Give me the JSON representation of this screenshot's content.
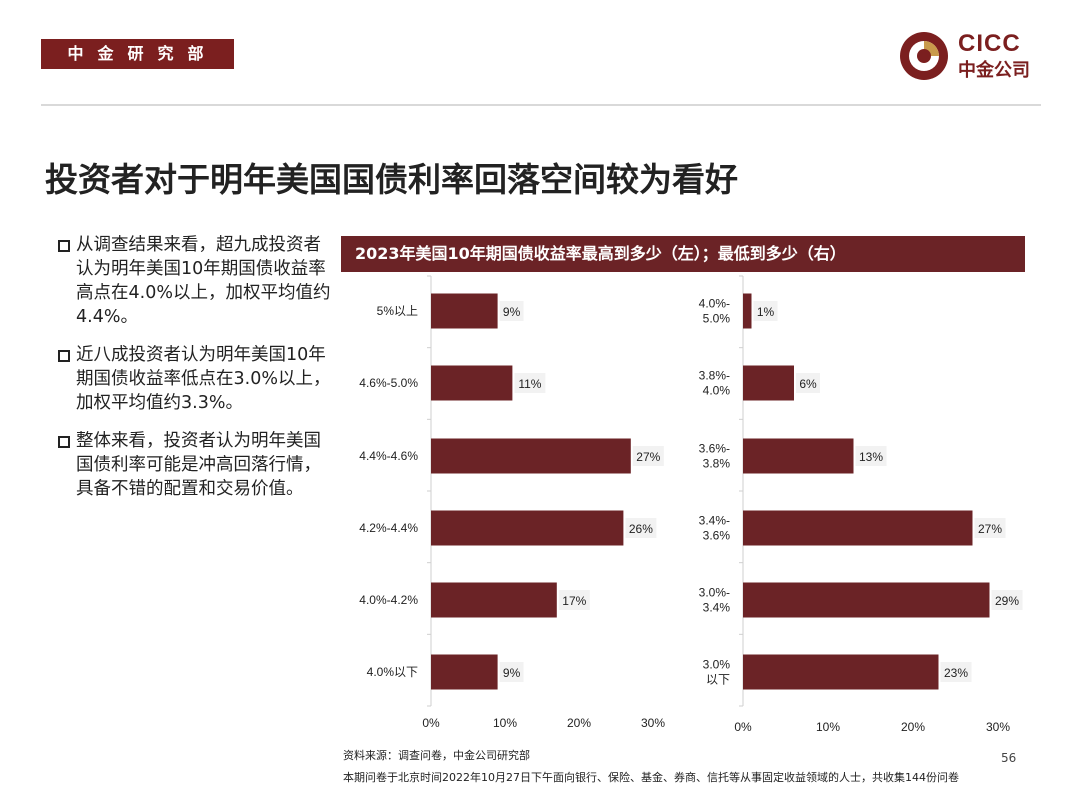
{
  "header": {
    "department": "中金研究部",
    "logo_en": "CICC",
    "logo_cn": "中金公司"
  },
  "title": "投资者对于明年美国国债利率回落空间较为看好",
  "bullets": [
    "从调查结果来看，超九成投资者认为明年美国10年期国债收益率高点在4.0%以上，加权平均值约4.4%。",
    "近八成投资者认为明年美国10年期国债收益率低点在3.0%以上，加权平均值约3.3%。",
    "整体来看，投资者认为明年美国国债利率可能是冲高回落行情，具备不错的配置和交易价值。"
  ],
  "chart_header": "2023年美国10年期国债收益率最高到多少（左）；最低到多少（右）",
  "chart_data": [
    {
      "type": "bar",
      "orientation": "horizontal",
      "title": "最高到多少（左）",
      "categories": [
        "5%以上",
        "4.6%-5.0%",
        "4.4%-4.6%",
        "4.2%-4.4%",
        "4.0%-4.2%",
        "4.0%以下"
      ],
      "values": [
        9,
        11,
        27,
        26,
        17,
        9
      ],
      "value_labels": [
        "9%",
        "11%",
        "27%",
        "26%",
        "17%",
        "9%"
      ],
      "xlim": [
        0,
        30
      ],
      "xticks": [
        "0%",
        "10%",
        "20%",
        "30%"
      ],
      "bar_color": "#6b2326"
    },
    {
      "type": "bar",
      "orientation": "horizontal",
      "title": "最低到多少（右）",
      "categories": [
        [
          "4.0%-",
          "5.0%"
        ],
        [
          "3.8%-",
          "4.0%"
        ],
        [
          "3.6%-",
          "3.8%"
        ],
        [
          "3.4%-",
          "3.6%"
        ],
        [
          "3.0%-",
          "3.4%"
        ],
        [
          "3.0%",
          "以下"
        ]
      ],
      "values": [
        1,
        6,
        13,
        27,
        29,
        23
      ],
      "value_labels": [
        "1%",
        "6%",
        "13%",
        "27%",
        "29%",
        "23%"
      ],
      "xlim": [
        0,
        30
      ],
      "xticks": [
        "0%",
        "10%",
        "20%",
        "30%"
      ],
      "bar_color": "#6b2326"
    }
  ],
  "footer": {
    "source": "资料来源：调查问卷，中金公司研究部",
    "page_number": "56",
    "note": "本期问卷于北京时间2022年10月27日下午面向银行、保险、基金、券商、信托等从事固定收益领域的人士，共收集144份问卷"
  }
}
